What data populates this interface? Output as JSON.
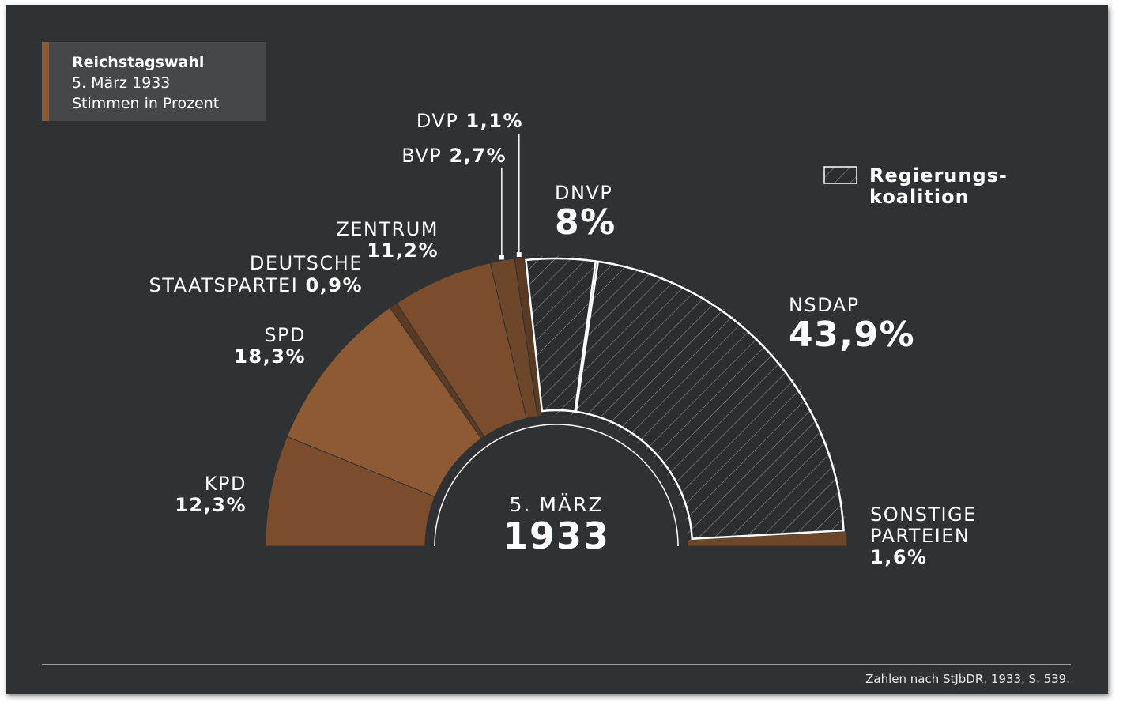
{
  "legend": {
    "title": "Reichstagswahl",
    "date": "5. März 1933",
    "unit": "Stimmen in Prozent"
  },
  "coalition_legend": {
    "line1": "Regierungs-",
    "line2": "koalition"
  },
  "center": {
    "top": "5. MÄRZ",
    "year": "1933"
  },
  "source": "Zahlen nach StJbDR, 1933, S. 539.",
  "colors": {
    "background": "#2f3235",
    "brown_light": "#8d5a34",
    "brown_mid": "#7b4d2d",
    "brown_dark": "#6e4629",
    "brown_darkest": "#5a3a23",
    "coalition": "#2b2e31",
    "outline": "#ffffff"
  },
  "chart_data": {
    "type": "semi-donut",
    "title": "Reichstagswahl 5. März 1933",
    "subtitle": "Stimmen in Prozent",
    "unit": "%",
    "slices": [
      {
        "party": "KPD",
        "name_lines": [
          "KPD"
        ],
        "value": 12.3,
        "value_label": "12,3%",
        "coalition": false
      },
      {
        "party": "SPD",
        "name_lines": [
          "SPD"
        ],
        "value": 18.3,
        "value_label": "18,3%",
        "coalition": false
      },
      {
        "party": "DEUTSCHE STAATSPARTEI",
        "name_lines": [
          "DEUTSCHE",
          "STAATSPARTEI"
        ],
        "value": 0.9,
        "value_label": "0,9%",
        "coalition": false
      },
      {
        "party": "ZENTRUM",
        "name_lines": [
          "ZENTRUM"
        ],
        "value": 11.2,
        "value_label": "11,2%",
        "coalition": false
      },
      {
        "party": "BVP",
        "name_lines": [
          "BVP"
        ],
        "value": 2.7,
        "value_label": "2,7%",
        "coalition": false
      },
      {
        "party": "DVP",
        "name_lines": [
          "DVP"
        ],
        "value": 1.1,
        "value_label": "1,1%",
        "coalition": false
      },
      {
        "party": "DNVP",
        "name_lines": [
          "DNVP"
        ],
        "value": 8,
        "value_label": "8%",
        "coalition": true
      },
      {
        "party": "NSDAP",
        "name_lines": [
          "NSDAP"
        ],
        "value": 43.9,
        "value_label": "43,9%",
        "coalition": true
      },
      {
        "party": "SONSTIGE PARTEIEN",
        "name_lines": [
          "SONSTIGE",
          "PARTEIEN"
        ],
        "value": 1.6,
        "value_label": "1,6%",
        "coalition": false
      }
    ]
  }
}
